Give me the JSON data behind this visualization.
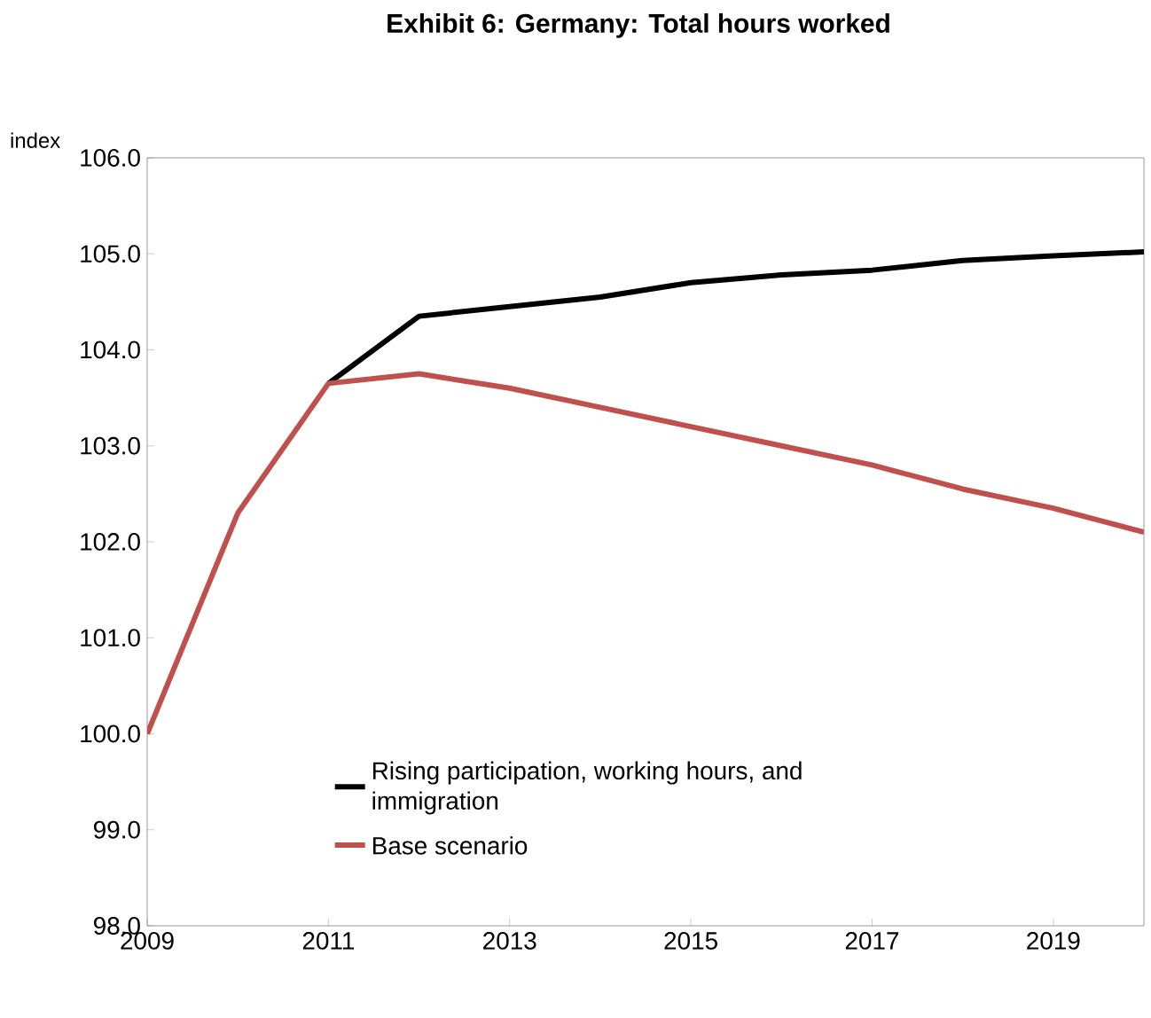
{
  "chart_data": {
    "type": "line",
    "title": "Exhibit 6: Germany: Total hours worked",
    "ylabel": "index",
    "x": [
      2009,
      2010,
      2011,
      2012,
      2013,
      2014,
      2015,
      2016,
      2017,
      2018,
      2019,
      2020
    ],
    "series": [
      {
        "name": "Rising participation, working hours, and immigration",
        "color": "#000000",
        "values": [
          null,
          null,
          103.65,
          104.35,
          104.45,
          104.55,
          104.7,
          104.78,
          104.83,
          104.93,
          104.98,
          105.02
        ]
      },
      {
        "name": "Base scenario",
        "color": "#c0504d",
        "values": [
          100.0,
          102.3,
          103.65,
          103.75,
          103.6,
          103.4,
          103.2,
          103.0,
          102.8,
          102.55,
          102.35,
          102.1
        ]
      }
    ],
    "xlim": [
      2009,
      2020
    ],
    "xticks": [
      2009,
      2011,
      2013,
      2015,
      2017,
      2019
    ],
    "ylim": [
      98,
      106
    ],
    "yticks": [
      {
        "value": 98,
        "label": "98.0"
      },
      {
        "value": 99,
        "label": "99.0"
      },
      {
        "value": 100,
        "label": "100.0"
      },
      {
        "value": 101,
        "label": "101.0"
      },
      {
        "value": 102,
        "label": "102.0"
      },
      {
        "value": 103,
        "label": "103.0"
      },
      {
        "value": 104,
        "label": "104.0"
      },
      {
        "value": 105,
        "label": "105.0"
      },
      {
        "value": 106,
        "label": "106.0"
      }
    ],
    "legend": "bottom",
    "marker": "none",
    "line_style": "solid",
    "grid": false
  }
}
